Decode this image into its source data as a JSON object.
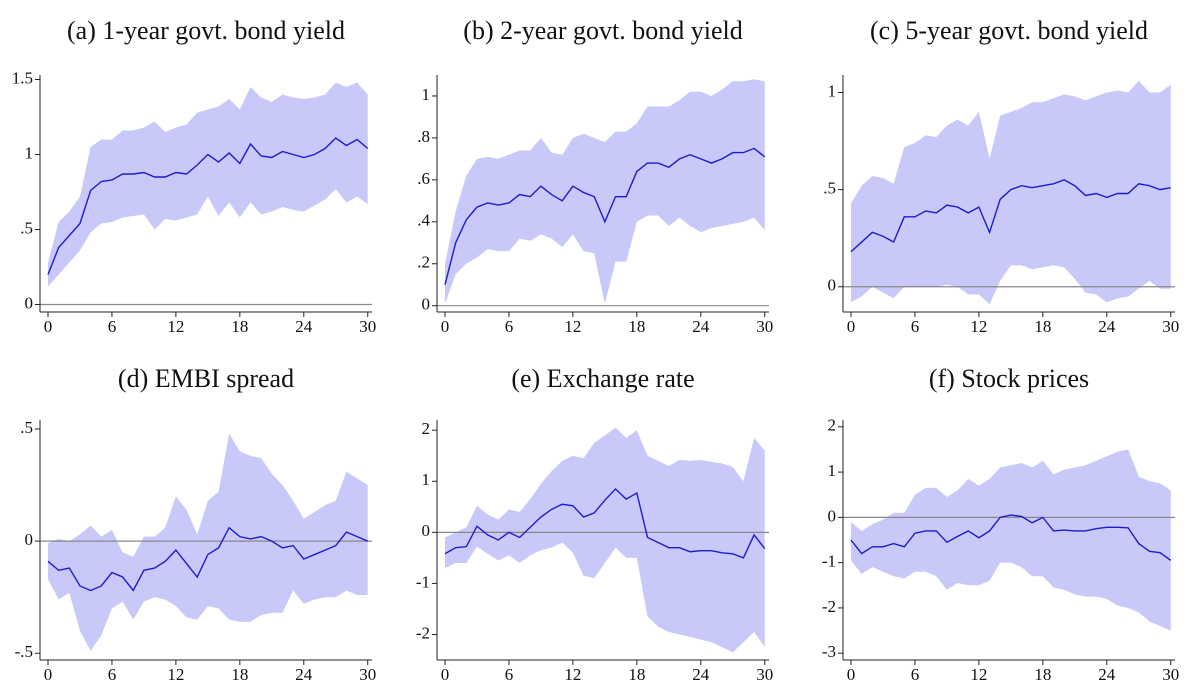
{
  "chart_data": [
    {
      "type": "line",
      "title": "(a) 1-year govt. bond yield",
      "x": [
        0,
        1,
        2,
        3,
        4,
        5,
        6,
        7,
        8,
        9,
        10,
        11,
        12,
        13,
        14,
        15,
        16,
        17,
        18,
        19,
        20,
        21,
        22,
        23,
        24,
        25,
        26,
        27,
        28,
        29,
        30
      ],
      "values": [
        0.2,
        0.38,
        0.46,
        0.54,
        0.76,
        0.82,
        0.83,
        0.87,
        0.87,
        0.88,
        0.85,
        0.85,
        0.88,
        0.87,
        0.93,
        1.0,
        0.95,
        1.01,
        0.94,
        1.07,
        0.99,
        0.98,
        1.02,
        1.0,
        0.98,
        1.0,
        1.04,
        1.11,
        1.06,
        1.1,
        1.04
      ],
      "upper": [
        0.28,
        0.55,
        0.62,
        0.72,
        1.05,
        1.1,
        1.1,
        1.16,
        1.16,
        1.18,
        1.22,
        1.15,
        1.18,
        1.2,
        1.28,
        1.3,
        1.32,
        1.37,
        1.3,
        1.45,
        1.38,
        1.35,
        1.4,
        1.38,
        1.37,
        1.38,
        1.4,
        1.48,
        1.45,
        1.48,
        1.4
      ],
      "lower": [
        0.12,
        0.2,
        0.28,
        0.36,
        0.48,
        0.54,
        0.55,
        0.58,
        0.59,
        0.6,
        0.5,
        0.57,
        0.56,
        0.58,
        0.6,
        0.72,
        0.59,
        0.68,
        0.58,
        0.68,
        0.6,
        0.62,
        0.65,
        0.63,
        0.62,
        0.66,
        0.7,
        0.77,
        0.68,
        0.72,
        0.67
      ],
      "color": "#1c1ccc",
      "band_color": "#c9c9f9",
      "zero_line": true,
      "xlim": [
        -0.75,
        30.4
      ],
      "xticks": [
        0,
        6,
        12,
        18,
        24,
        30
      ],
      "ylim": [
        -0.05,
        1.53
      ],
      "yticks": [
        0,
        {
          "value": 0.5,
          "label": ".5"
        },
        1,
        1.5
      ]
    },
    {
      "type": "line",
      "title": "(b) 2-year govt. bond yield",
      "x": [
        0,
        1,
        2,
        3,
        4,
        5,
        6,
        7,
        8,
        9,
        10,
        11,
        12,
        13,
        14,
        15,
        16,
        17,
        18,
        19,
        20,
        21,
        22,
        23,
        24,
        25,
        26,
        27,
        28,
        29,
        30
      ],
      "values": [
        0.1,
        0.3,
        0.41,
        0.47,
        0.49,
        0.48,
        0.49,
        0.53,
        0.52,
        0.57,
        0.53,
        0.5,
        0.57,
        0.54,
        0.52,
        0.4,
        0.52,
        0.52,
        0.64,
        0.68,
        0.68,
        0.66,
        0.7,
        0.72,
        0.7,
        0.68,
        0.7,
        0.73,
        0.73,
        0.75,
        0.71
      ],
      "upper": [
        0.2,
        0.45,
        0.62,
        0.7,
        0.71,
        0.7,
        0.72,
        0.74,
        0.74,
        0.8,
        0.73,
        0.72,
        0.8,
        0.82,
        0.8,
        0.78,
        0.83,
        0.83,
        0.87,
        0.95,
        0.95,
        0.95,
        0.98,
        1.02,
        1.02,
        1.0,
        1.03,
        1.07,
        1.07,
        1.08,
        1.07
      ],
      "lower": [
        0.01,
        0.15,
        0.2,
        0.23,
        0.27,
        0.26,
        0.26,
        0.32,
        0.31,
        0.34,
        0.32,
        0.28,
        0.34,
        0.26,
        0.25,
        0.01,
        0.21,
        0.21,
        0.4,
        0.43,
        0.43,
        0.38,
        0.42,
        0.38,
        0.35,
        0.37,
        0.38,
        0.39,
        0.4,
        0.42,
        0.36
      ],
      "color": "#1c1ccc",
      "band_color": "#c9c9f9",
      "zero_line": true,
      "xlim": [
        -0.75,
        30.4
      ],
      "xticks": [
        0,
        6,
        12,
        18,
        24,
        30
      ],
      "ylim": [
        -0.03,
        1.1
      ],
      "yticks": [
        0,
        {
          "value": 0.2,
          "label": ".2"
        },
        {
          "value": 0.4,
          "label": ".4"
        },
        {
          "value": 0.6,
          "label": ".6"
        },
        {
          "value": 0.8,
          "label": ".8"
        },
        1
      ]
    },
    {
      "type": "line",
      "title": "(c) 5-year govt. bond yield",
      "x": [
        0,
        1,
        2,
        3,
        4,
        5,
        6,
        7,
        8,
        9,
        10,
        11,
        12,
        13,
        14,
        15,
        16,
        17,
        18,
        19,
        20,
        21,
        22,
        23,
        24,
        25,
        26,
        27,
        28,
        29,
        30
      ],
      "values": [
        0.18,
        0.23,
        0.28,
        0.26,
        0.23,
        0.36,
        0.36,
        0.39,
        0.38,
        0.42,
        0.41,
        0.38,
        0.41,
        0.28,
        0.45,
        0.5,
        0.52,
        0.51,
        0.52,
        0.53,
        0.55,
        0.52,
        0.47,
        0.48,
        0.46,
        0.48,
        0.48,
        0.53,
        0.52,
        0.5,
        0.51
      ],
      "upper": [
        0.43,
        0.52,
        0.57,
        0.56,
        0.53,
        0.72,
        0.74,
        0.78,
        0.77,
        0.83,
        0.86,
        0.83,
        0.9,
        0.66,
        0.88,
        0.9,
        0.92,
        0.95,
        0.95,
        0.97,
        0.99,
        0.98,
        0.96,
        0.98,
        1.0,
        1.01,
        1.0,
        1.06,
        1.0,
        1.0,
        1.04
      ],
      "lower": [
        -0.08,
        -0.05,
        0.0,
        -0.03,
        -0.06,
        0.0,
        0.0,
        0.0,
        0.0,
        0.01,
        0.0,
        -0.04,
        -0.04,
        -0.09,
        0.03,
        0.11,
        0.11,
        0.09,
        0.1,
        0.11,
        0.1,
        0.04,
        -0.03,
        -0.04,
        -0.08,
        -0.06,
        -0.05,
        -0.01,
        0.03,
        -0.01,
        -0.01
      ],
      "color": "#1c1ccc",
      "band_color": "#c9c9f9",
      "zero_line": true,
      "xlim": [
        -0.75,
        30.4
      ],
      "xticks": [
        0,
        6,
        12,
        18,
        24,
        30
      ],
      "ylim": [
        -0.13,
        1.09
      ],
      "yticks": [
        0,
        {
          "value": 0.5,
          "label": ".5"
        },
        1
      ]
    },
    {
      "type": "line",
      "title": "(d) EMBI spread",
      "x": [
        0,
        1,
        2,
        3,
        4,
        5,
        6,
        7,
        8,
        9,
        10,
        11,
        12,
        13,
        14,
        15,
        16,
        17,
        18,
        19,
        20,
        21,
        22,
        23,
        24,
        25,
        26,
        27,
        28,
        29,
        30
      ],
      "values": [
        -0.09,
        -0.13,
        -0.12,
        -0.2,
        -0.22,
        -0.2,
        -0.14,
        -0.16,
        -0.22,
        -0.13,
        -0.12,
        -0.09,
        -0.04,
        -0.1,
        -0.16,
        -0.06,
        -0.03,
        0.06,
        0.02,
        0.01,
        0.02,
        0.0,
        -0.03,
        -0.02,
        -0.08,
        -0.06,
        -0.04,
        -0.02,
        0.04,
        0.02,
        0.0
      ],
      "upper": [
        -0.01,
        0.01,
        0.0,
        0.03,
        0.07,
        0.02,
        0.05,
        -0.05,
        -0.07,
        0.02,
        0.02,
        0.06,
        0.2,
        0.14,
        0.03,
        0.18,
        0.22,
        0.48,
        0.4,
        0.38,
        0.37,
        0.3,
        0.25,
        0.18,
        0.1,
        0.13,
        0.16,
        0.18,
        0.31,
        0.28,
        0.25
      ],
      "lower": [
        -0.17,
        -0.26,
        -0.23,
        -0.4,
        -0.49,
        -0.42,
        -0.3,
        -0.27,
        -0.35,
        -0.27,
        -0.25,
        -0.26,
        -0.29,
        -0.34,
        -0.35,
        -0.29,
        -0.3,
        -0.35,
        -0.36,
        -0.36,
        -0.33,
        -0.32,
        -0.32,
        -0.22,
        -0.28,
        -0.26,
        -0.25,
        -0.25,
        -0.22,
        -0.24,
        -0.24
      ],
      "color": "#1c1ccc",
      "band_color": "#c9c9f9",
      "zero_line": true,
      "xlim": [
        -0.75,
        30.4
      ],
      "xticks": [
        0,
        6,
        12,
        18,
        24,
        30
      ],
      "ylim": [
        -0.53,
        0.54
      ],
      "yticks": [
        {
          "value": -0.5,
          "label": "-.5"
        },
        0,
        {
          "value": 0.5,
          "label": ".5"
        }
      ]
    },
    {
      "type": "line",
      "title": "(e) Exchange rate",
      "x": [
        0,
        1,
        2,
        3,
        4,
        5,
        6,
        7,
        8,
        9,
        10,
        11,
        12,
        13,
        14,
        15,
        16,
        17,
        18,
        19,
        20,
        21,
        22,
        23,
        24,
        25,
        26,
        27,
        28,
        29,
        30
      ],
      "values": [
        -0.42,
        -0.3,
        -0.28,
        0.12,
        -0.05,
        -0.15,
        0.0,
        -0.1,
        0.1,
        0.3,
        0.45,
        0.55,
        0.52,
        0.3,
        0.38,
        0.63,
        0.85,
        0.65,
        0.77,
        -0.1,
        -0.2,
        -0.3,
        -0.3,
        -0.38,
        -0.36,
        -0.36,
        -0.4,
        -0.42,
        -0.5,
        -0.05,
        -0.32
      ],
      "upper": [
        -0.1,
        0.0,
        0.1,
        0.52,
        0.35,
        0.25,
        0.45,
        0.4,
        0.65,
        0.95,
        1.2,
        1.4,
        1.5,
        1.45,
        1.75,
        1.9,
        2.05,
        1.85,
        2.0,
        1.5,
        1.4,
        1.3,
        1.42,
        1.4,
        1.42,
        1.38,
        1.35,
        1.28,
        1.0,
        1.85,
        1.6
      ],
      "lower": [
        -0.7,
        -0.6,
        -0.6,
        -0.28,
        -0.42,
        -0.55,
        -0.45,
        -0.6,
        -0.45,
        -0.35,
        -0.3,
        -0.2,
        -0.4,
        -0.85,
        -0.9,
        -0.6,
        -0.3,
        -0.5,
        -0.5,
        -1.65,
        -1.85,
        -1.95,
        -2.0,
        -2.05,
        -2.1,
        -2.15,
        -2.25,
        -2.35,
        -2.15,
        -1.95,
        -2.25
      ],
      "color": "#1c1ccc",
      "band_color": "#c9c9f9",
      "zero_line": true,
      "xlim": [
        -0.75,
        30.4
      ],
      "xticks": [
        0,
        6,
        12,
        18,
        24,
        30
      ],
      "ylim": [
        -2.5,
        2.2
      ],
      "yticks": [
        -2,
        -1,
        0,
        1,
        2
      ]
    },
    {
      "type": "line",
      "title": "(f) Stock prices",
      "x": [
        0,
        1,
        2,
        3,
        4,
        5,
        6,
        7,
        8,
        9,
        10,
        11,
        12,
        13,
        14,
        15,
        16,
        17,
        18,
        19,
        20,
        21,
        22,
        23,
        24,
        25,
        26,
        27,
        28,
        29,
        30
      ],
      "values": [
        -0.5,
        -0.8,
        -0.65,
        -0.65,
        -0.58,
        -0.65,
        -0.35,
        -0.3,
        -0.3,
        -0.55,
        -0.42,
        -0.3,
        -0.45,
        -0.3,
        0.0,
        0.05,
        0.02,
        -0.12,
        0.0,
        -0.3,
        -0.28,
        -0.3,
        -0.3,
        -0.25,
        -0.22,
        -0.22,
        -0.23,
        -0.58,
        -0.75,
        -0.78,
        -0.95
      ],
      "upper": [
        -0.1,
        -0.3,
        -0.15,
        -0.05,
        0.1,
        0.1,
        0.5,
        0.65,
        0.65,
        0.45,
        0.6,
        0.85,
        0.7,
        0.85,
        1.1,
        1.15,
        1.2,
        1.1,
        1.25,
        0.95,
        1.05,
        1.1,
        1.15,
        1.25,
        1.35,
        1.45,
        1.5,
        0.9,
        0.8,
        0.75,
        0.6
      ],
      "lower": [
        -0.95,
        -1.25,
        -1.1,
        -1.2,
        -1.3,
        -1.35,
        -1.2,
        -1.2,
        -1.3,
        -1.6,
        -1.45,
        -1.5,
        -1.5,
        -1.4,
        -1.0,
        -1.0,
        -1.1,
        -1.3,
        -1.3,
        -1.55,
        -1.6,
        -1.7,
        -1.75,
        -1.75,
        -1.8,
        -1.95,
        -2.0,
        -2.1,
        -2.3,
        -2.4,
        -2.5
      ],
      "color": "#1c1ccc",
      "band_color": "#c9c9f9",
      "zero_line": true,
      "xlim": [
        -0.75,
        30.4
      ],
      "xticks": [
        0,
        6,
        12,
        18,
        24,
        30
      ],
      "ylim": [
        -3.15,
        2.15
      ],
      "yticks": [
        -3,
        -2,
        -1,
        0,
        1,
        2
      ]
    }
  ]
}
